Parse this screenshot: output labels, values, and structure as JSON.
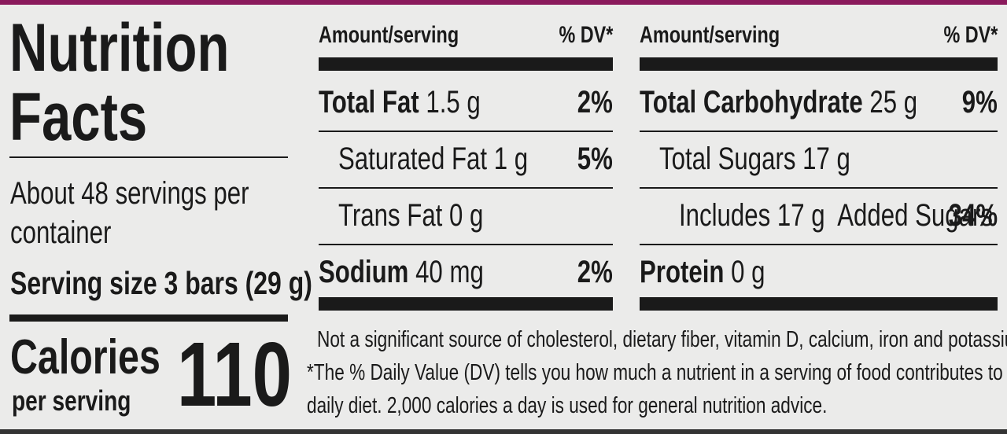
{
  "header": {
    "title_lines": [
      "Nutrition",
      "Facts"
    ],
    "servings_lines": [
      "About 48 servings per",
      "container"
    ],
    "serving_size": "Serving size 3 bars (29 g)"
  },
  "calories": {
    "label": "Calories",
    "sublabel": "per serving",
    "value": "110"
  },
  "columns": [
    {
      "amount_header": "Amount/serving",
      "dv_header": "% DV*",
      "rows": [
        {
          "name": "Total Fat",
          "amount": "1.5 g",
          "dv": "2%",
          "level": 0
        },
        {
          "name": "Saturated Fat",
          "amount": "1 g",
          "dv": "5%",
          "level": 1
        },
        {
          "name": "Trans Fat",
          "amount": "0 g",
          "level": 1
        },
        {
          "name": "Sodium",
          "amount": "40 mg",
          "dv": "2%",
          "level": 0
        }
      ]
    },
    {
      "amount_header": "Amount/serving",
      "dv_header": "% DV*",
      "rows": [
        {
          "name": "Total Carbohydrate",
          "amount": "25 g",
          "dv": "9%",
          "level": 0
        },
        {
          "name": "Total Sugars",
          "amount": "17 g",
          "level": 1
        },
        {
          "name": "Includes 17 g  Added Sugars",
          "dv": "34%",
          "level": 2
        },
        {
          "name": "Protein",
          "amount": "0 g",
          "level": 0
        }
      ]
    }
  ],
  "footnote_lines": [
    "Not a significant source of cholesterol, dietary fiber, vitamin D, calcium, iron and potassium.",
    "*The % Daily Value (DV) tells you how much a nutrient in a serving of food contributes to a",
    "daily diet. 2,000 calories a day is used for general nutrition advice."
  ]
}
